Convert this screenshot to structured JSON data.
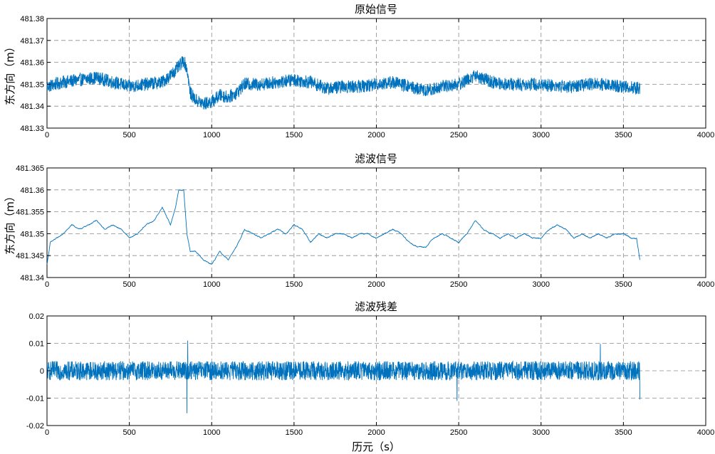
{
  "figure": {
    "xlabel": "历元（s）"
  },
  "chart_data": [
    {
      "type": "line",
      "title": "原始信号",
      "ylabel": "东方向（m）",
      "xlim": [
        0,
        4000
      ],
      "ylim": [
        481.33,
        481.38
      ],
      "xticks": [
        0,
        500,
        1000,
        1500,
        2000,
        2500,
        3000,
        3500,
        4000
      ],
      "yticks": [
        481.33,
        481.34,
        481.35,
        481.36,
        481.37,
        481.38
      ],
      "ytick_labels": [
        "481.33",
        "481.34",
        "481.35",
        "481.36",
        "481.37",
        "481.38"
      ],
      "grid": true,
      "color": "#0072BD",
      "series": [
        {
          "x": [
            0,
            100,
            200,
            300,
            400,
            500,
            600,
            700,
            750,
            800,
            830,
            850,
            870,
            900,
            950,
            1000,
            1050,
            1100,
            1150,
            1200,
            1300,
            1400,
            1500,
            1600,
            1700,
            1800,
            1900,
            2000,
            2100,
            2200,
            2300,
            2400,
            2500,
            2600,
            2700,
            2800,
            2900,
            3000,
            3100,
            3200,
            3300,
            3400,
            3500,
            3600
          ],
          "y": [
            481.349,
            481.351,
            481.352,
            481.353,
            481.351,
            481.349,
            481.35,
            481.351,
            481.354,
            481.358,
            481.361,
            481.357,
            481.346,
            481.343,
            481.341,
            481.342,
            481.345,
            481.344,
            481.346,
            481.35,
            481.35,
            481.351,
            481.352,
            481.351,
            481.348,
            481.349,
            481.349,
            481.35,
            481.351,
            481.349,
            481.347,
            481.349,
            481.35,
            481.354,
            481.351,
            481.35,
            481.35,
            481.35,
            481.349,
            481.349,
            481.35,
            481.35,
            481.349,
            481.348
          ],
          "noise_amplitude": 0.003
        }
      ]
    },
    {
      "type": "line",
      "title": "滤波信号",
      "ylabel": "东方向（m）",
      "xlim": [
        0,
        4000
      ],
      "ylim": [
        481.34,
        481.365
      ],
      "xticks": [
        0,
        500,
        1000,
        1500,
        2000,
        2500,
        3000,
        3500,
        4000
      ],
      "yticks": [
        481.34,
        481.345,
        481.35,
        481.355,
        481.36,
        481.365
      ],
      "ytick_labels": [
        "481.34",
        "481.345",
        "481.35",
        "481.355",
        "481.36",
        "481.365"
      ],
      "grid": true,
      "color": "#0072BD",
      "series": [
        {
          "x": [
            0,
            20,
            60,
            100,
            150,
            200,
            250,
            300,
            350,
            400,
            450,
            500,
            550,
            600,
            650,
            700,
            750,
            780,
            800,
            830,
            850,
            870,
            900,
            950,
            1000,
            1050,
            1100,
            1150,
            1200,
            1250,
            1300,
            1350,
            1400,
            1450,
            1500,
            1550,
            1600,
            1650,
            1700,
            1750,
            1800,
            1850,
            1900,
            1950,
            2000,
            2050,
            2100,
            2150,
            2200,
            2250,
            2300,
            2350,
            2400,
            2450,
            2500,
            2550,
            2600,
            2650,
            2700,
            2750,
            2800,
            2850,
            2900,
            2950,
            3000,
            3050,
            3100,
            3150,
            3200,
            3250,
            3300,
            3350,
            3400,
            3450,
            3500,
            3550,
            3580,
            3600
          ],
          "y": [
            481.343,
            481.348,
            481.349,
            481.35,
            481.352,
            481.351,
            481.352,
            481.353,
            481.351,
            481.352,
            481.351,
            481.349,
            481.35,
            481.352,
            481.353,
            481.356,
            481.352,
            481.356,
            481.36,
            481.36,
            481.35,
            481.346,
            481.346,
            481.344,
            481.343,
            481.346,
            481.344,
            481.347,
            481.351,
            481.35,
            481.349,
            481.35,
            481.351,
            481.35,
            481.352,
            481.351,
            481.348,
            481.35,
            481.349,
            481.35,
            481.35,
            481.349,
            481.35,
            481.35,
            481.349,
            481.35,
            481.351,
            481.35,
            481.348,
            481.347,
            481.347,
            481.349,
            481.35,
            481.349,
            481.348,
            481.35,
            481.353,
            481.351,
            481.35,
            481.349,
            481.35,
            481.349,
            481.35,
            481.349,
            481.349,
            481.351,
            481.352,
            481.351,
            481.349,
            481.35,
            481.349,
            481.35,
            481.349,
            481.35,
            481.35,
            481.349,
            481.349,
            481.344
          ],
          "noise_amplitude": 0.0004
        }
      ]
    },
    {
      "type": "line",
      "title": "滤波残差",
      "ylabel": "",
      "xlim": [
        0,
        4000
      ],
      "ylim": [
        -0.02,
        0.02
      ],
      "xticks": [
        0,
        500,
        1000,
        1500,
        2000,
        2500,
        3000,
        3500,
        4000
      ],
      "yticks": [
        -0.02,
        -0.01,
        0,
        0.01,
        0.02
      ],
      "ytick_labels": [
        "-0.02",
        "-0.01",
        "0",
        "0.01",
        "0.02"
      ],
      "grid": true,
      "color": "#0072BD",
      "series": [
        {
          "x": [
            0,
            3600
          ],
          "y": [
            0,
            0
          ],
          "noise_amplitude": 0.0035,
          "spikes": [
            {
              "x": 850,
              "y": -0.0155
            },
            {
              "x": 855,
              "y": 0.011
            },
            {
              "x": 2490,
              "y": -0.011
            },
            {
              "x": 3360,
              "y": 0.0098
            },
            {
              "x": 3600,
              "y": -0.0105
            }
          ]
        }
      ]
    }
  ]
}
